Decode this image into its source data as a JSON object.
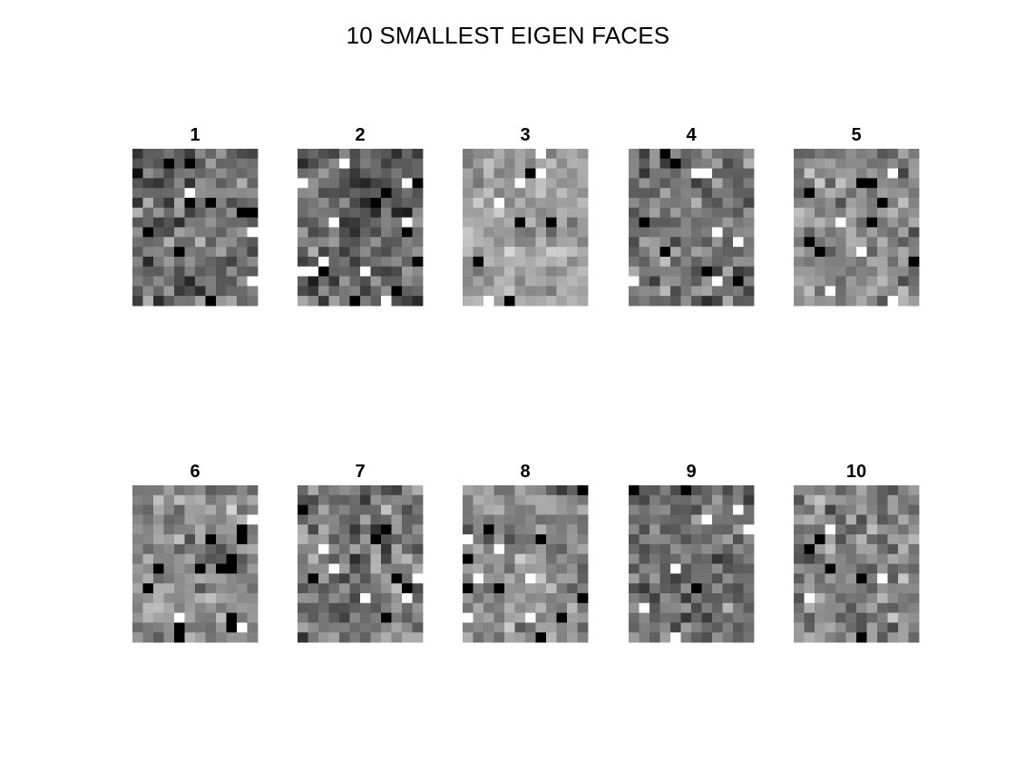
{
  "chart_data": {
    "type": "heatmap",
    "title": "10 SMALLEST EIGEN FACES",
    "colormap": "gray",
    "grid": false,
    "value_range": [
      0,
      1
    ],
    "layout": {
      "rows": 2,
      "cols": 5
    },
    "cell_grid": {
      "rows": 16,
      "cols": 12
    },
    "panels": [
      {
        "label": "1",
        "mean": 0.42,
        "spread": 0.17,
        "seed": 11
      },
      {
        "label": "2",
        "mean": 0.4,
        "spread": 0.18,
        "seed": 23
      },
      {
        "label": "3",
        "mean": 0.62,
        "spread": 0.12,
        "seed": 37
      },
      {
        "label": "4",
        "mean": 0.45,
        "spread": 0.15,
        "seed": 41
      },
      {
        "label": "5",
        "mean": 0.55,
        "spread": 0.15,
        "seed": 53
      },
      {
        "label": "6",
        "mean": 0.55,
        "spread": 0.14,
        "seed": 67
      },
      {
        "label": "7",
        "mean": 0.47,
        "spread": 0.17,
        "seed": 71
      },
      {
        "label": "8",
        "mean": 0.55,
        "spread": 0.15,
        "seed": 83
      },
      {
        "label": "9",
        "mean": 0.42,
        "spread": 0.15,
        "seed": 97
      },
      {
        "label": "10",
        "mean": 0.52,
        "spread": 0.17,
        "seed": 101
      }
    ]
  }
}
